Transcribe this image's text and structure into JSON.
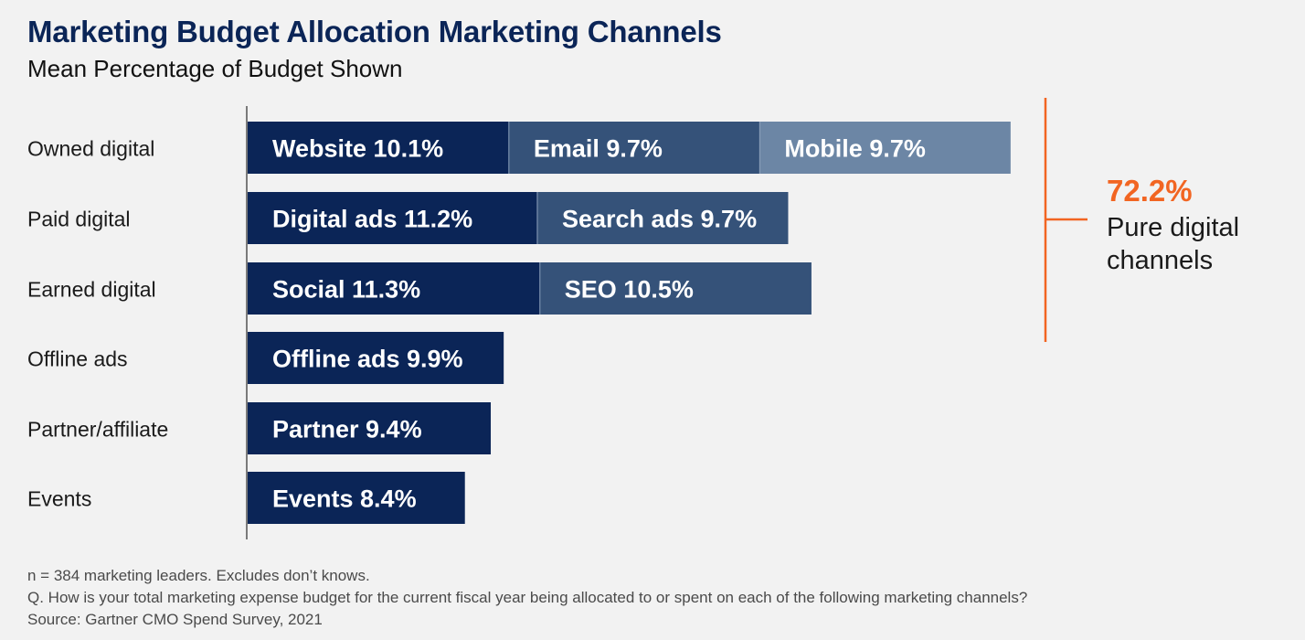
{
  "chart_data": {
    "type": "bar",
    "stacked": true,
    "orientation": "horizontal",
    "title": "Marketing Budget Allocation Marketing Channels",
    "subtitle": "Mean Percentage of Budget Shown",
    "categories": [
      "Owned digital",
      "Paid digital",
      "Earned digital",
      "Offline ads",
      "Partner/affiliate",
      "Events"
    ],
    "bars": [
      {
        "category": "Owned digital",
        "segments": [
          {
            "label": "Website 10.1%",
            "value": 10.1,
            "color": "#0b2557"
          },
          {
            "label": "Email 9.7%",
            "value": 9.7,
            "color": "#355279"
          },
          {
            "label": "Mobile 9.7%",
            "value": 9.7,
            "color": "#6c86a5"
          }
        ]
      },
      {
        "category": "Paid digital",
        "segments": [
          {
            "label": "Digital ads 11.2%",
            "value": 11.2,
            "color": "#0b2557"
          },
          {
            "label": "Search ads 9.7%",
            "value": 9.7,
            "color": "#355279"
          }
        ]
      },
      {
        "category": "Earned digital",
        "segments": [
          {
            "label": "Social 11.3%",
            "value": 11.3,
            "color": "#0b2557"
          },
          {
            "label": "SEO 10.5%",
            "value": 10.5,
            "color": "#355279"
          }
        ]
      },
      {
        "category": "Offline ads",
        "segments": [
          {
            "label": "Offline ads 9.9%",
            "value": 9.9,
            "color": "#0b2557"
          }
        ]
      },
      {
        "category": "Partner/affiliate",
        "segments": [
          {
            "label": "Partner 9.4%",
            "value": 9.4,
            "color": "#0b2557"
          }
        ]
      },
      {
        "category": "Events",
        "segments": [
          {
            "label": "Events 8.4%",
            "value": 8.4,
            "color": "#0b2557"
          }
        ]
      }
    ],
    "annotation": {
      "value_text": "72.2%",
      "text_lines": [
        "Pure digital",
        "channels"
      ],
      "color": "#f26522",
      "spans": [
        "Owned digital",
        "Paid digital",
        "Earned digital"
      ]
    },
    "legend": "none",
    "grid": false
  },
  "footnotes": [
    "n = 384 marketing leaders. Excludes don’t knows.",
    "Q. How is your total marketing expense budget for the current fiscal year being allocated to or spent on each of the following marketing channels?",
    "Source: Gartner CMO Spend Survey, 2021"
  ]
}
